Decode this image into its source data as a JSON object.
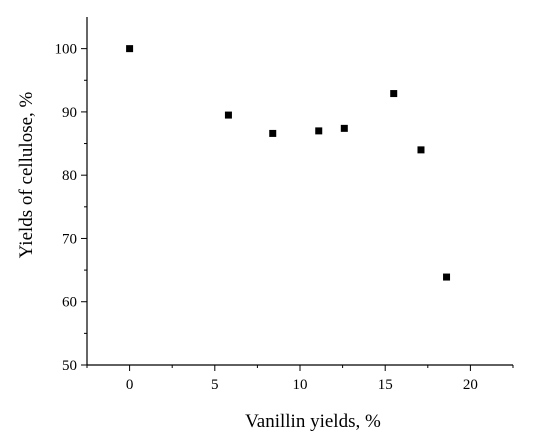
{
  "chart_data": {
    "type": "scatter",
    "title": "",
    "xlabel": "Vanillin yields, %",
    "ylabel": "Yields of cellulose, %",
    "xlim": [
      -2.5,
      22.5
    ],
    "ylim": [
      50,
      105
    ],
    "x_ticks": [
      0,
      5,
      10,
      15,
      20
    ],
    "y_ticks": [
      50,
      60,
      70,
      80,
      90,
      100
    ],
    "x_tick_labels": [
      "0",
      "5",
      "10",
      "15",
      "20"
    ],
    "y_tick_labels": [
      "50",
      "60",
      "70",
      "80",
      "90",
      "100"
    ],
    "grid": false,
    "marker": "square",
    "marker_color": "#000000",
    "series": [
      {
        "points": [
          {
            "x": 0,
            "y": 100
          },
          {
            "x": 5.8,
            "y": 89.5
          },
          {
            "x": 8.4,
            "y": 86.6
          },
          {
            "x": 11.1,
            "y": 87.0
          },
          {
            "x": 12.6,
            "y": 87.4
          },
          {
            "x": 15.5,
            "y": 92.9
          },
          {
            "x": 17.1,
            "y": 84.0
          },
          {
            "x": 18.6,
            "y": 63.9
          }
        ]
      }
    ]
  }
}
